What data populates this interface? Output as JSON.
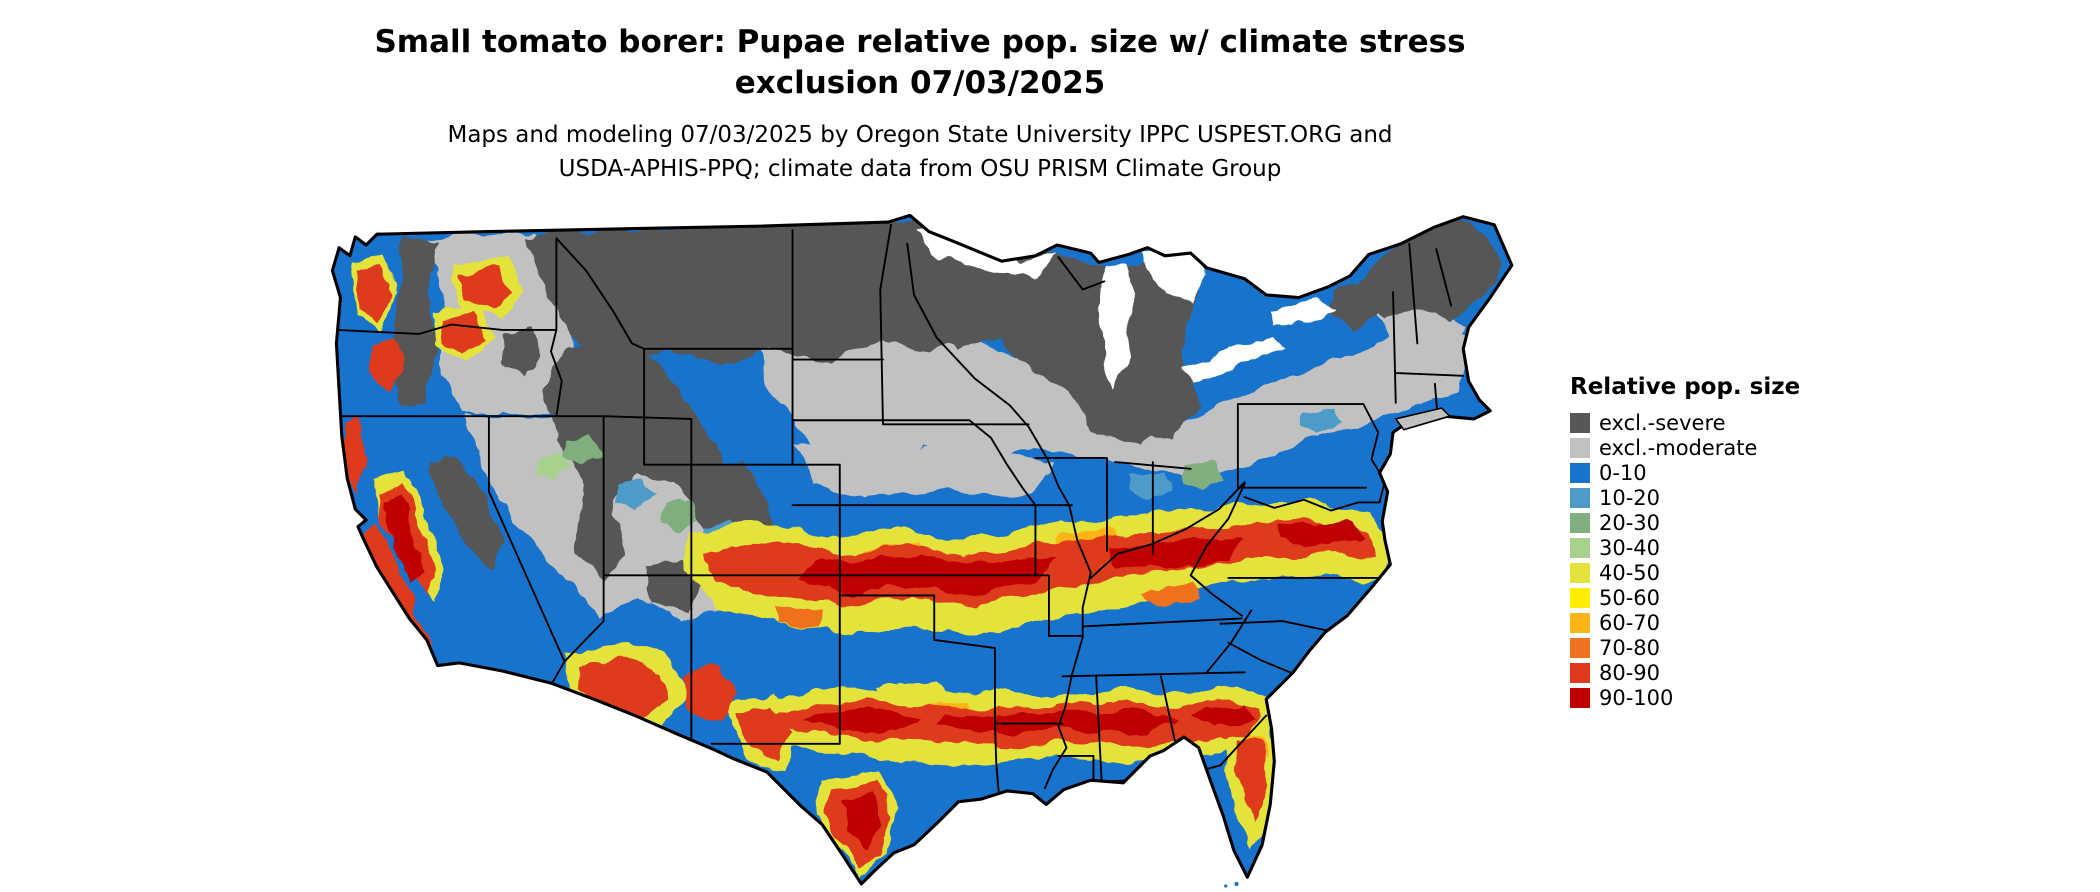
{
  "title": {
    "line1": "Small tomato borer: Pupae relative pop. size w/ climate stress",
    "line2": "exclusion 07/03/2025"
  },
  "subtitle": {
    "line1": "Maps and modeling 07/03/2025 by Oregon State University IPPC USPEST.ORG and",
    "line2": "USDA-APHIS-PPQ; climate data from OSU PRISM Climate Group"
  },
  "legend": {
    "title": "Relative pop. size",
    "items": [
      {
        "label": "excl.-severe",
        "color": "#575757"
      },
      {
        "label": "excl.-moderate",
        "color": "#c1c1c1"
      },
      {
        "label": "0-10",
        "color": "#1873cd"
      },
      {
        "label": "10-20",
        "color": "#4d9bc9"
      },
      {
        "label": "20-30",
        "color": "#7fae7f"
      },
      {
        "label": "30-40",
        "color": "#a8d18b"
      },
      {
        "label": "40-50",
        "color": "#e3e33b"
      },
      {
        "label": "50-60",
        "color": "#ffec00"
      },
      {
        "label": "60-70",
        "color": "#fdb515"
      },
      {
        "label": "70-80",
        "color": "#f0711f"
      },
      {
        "label": "80-90",
        "color": "#de3a1b"
      },
      {
        "label": "90-100",
        "color": "#bf0000"
      }
    ]
  }
}
